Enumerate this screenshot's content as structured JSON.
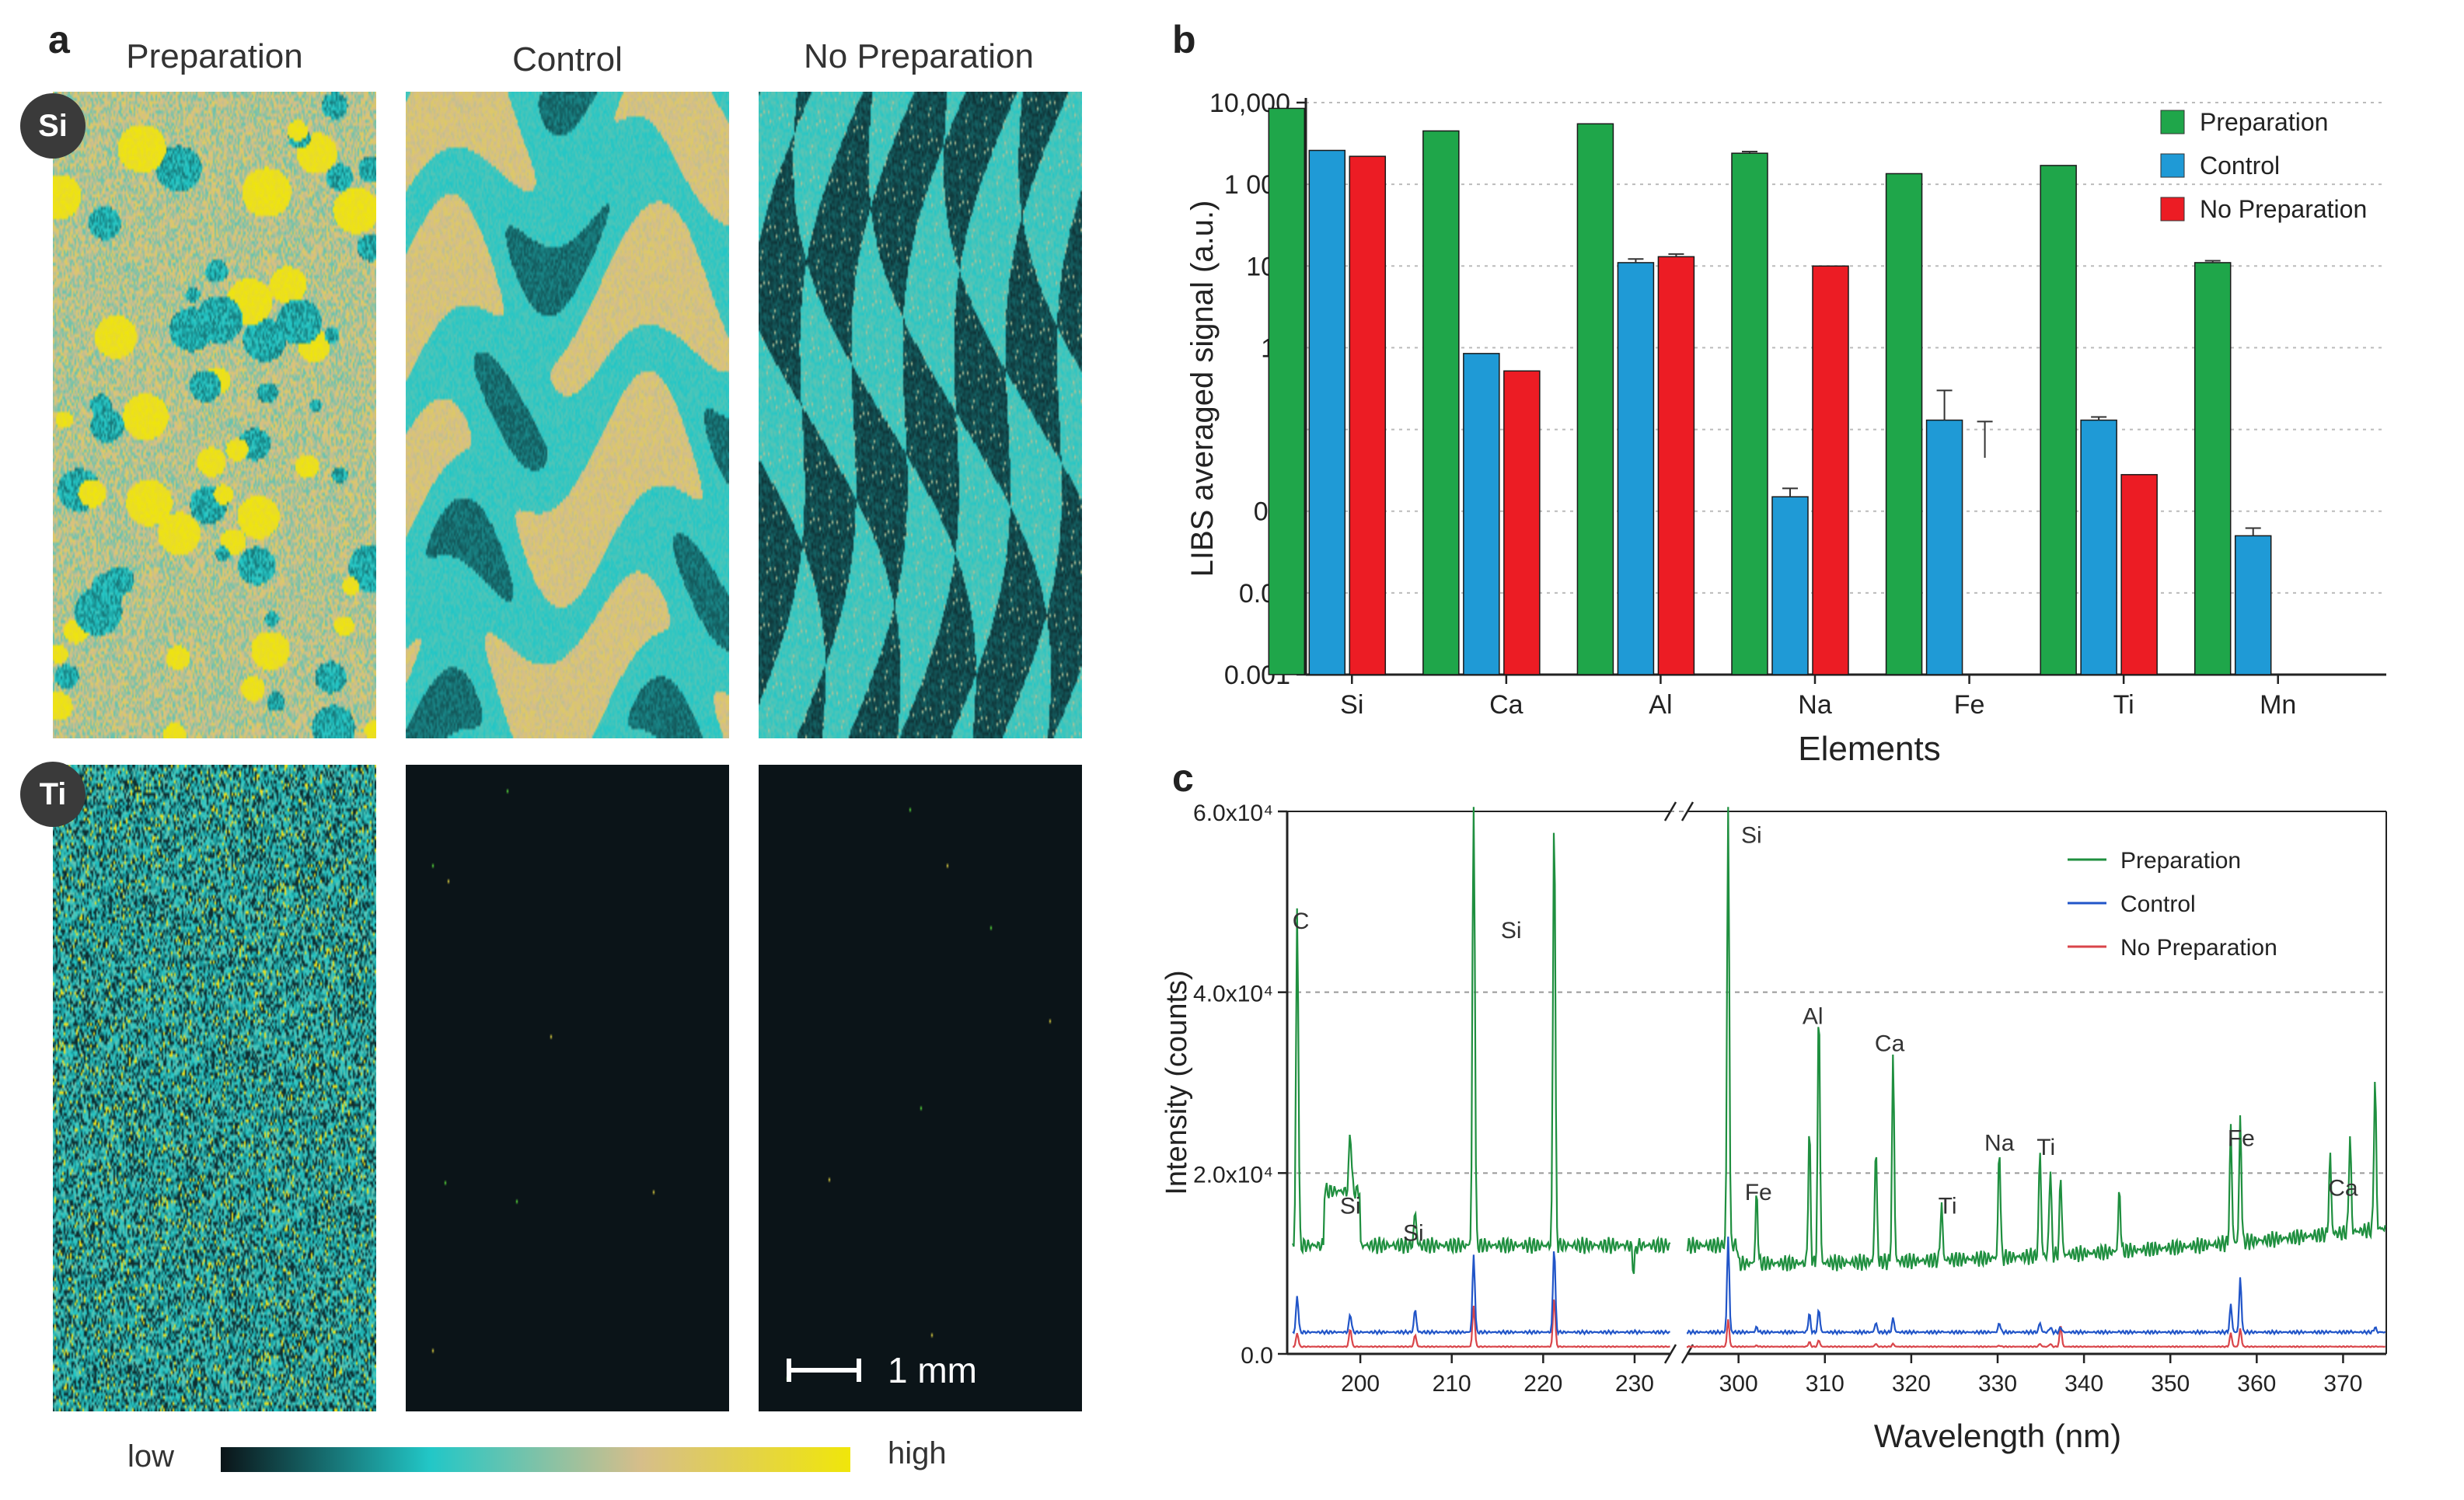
{
  "panel_a": {
    "letter": "a",
    "columns": [
      "Preparation",
      "Control",
      "No Preparation"
    ],
    "rows": [
      "Si",
      "Ti"
    ],
    "scale_bar": "1 mm",
    "colorbar": {
      "low": "low",
      "high": "high",
      "colors": [
        "#0b1418",
        "#22c7c7",
        "#d6be8a",
        "#f0e60a"
      ]
    }
  },
  "chart_data": [
    {
      "id": "b",
      "type": "bar",
      "panel_letter": "b",
      "title": "",
      "xlabel": "Elements",
      "ylabel": "LIBS averaged signal (a.u.)",
      "yscale": "log",
      "ylim": [
        0.001,
        10000
      ],
      "yticks": [
        0.001,
        0.01,
        0.1,
        1,
        10,
        100,
        1000,
        10000
      ],
      "ytick_labels": [
        "0.001",
        "0.01",
        "0.1",
        "1",
        "10",
        "100",
        "1 000",
        "10,000"
      ],
      "grid": "horizontal dotted",
      "legend_position": "top-right",
      "categories": [
        "Si",
        "Ca",
        "Al",
        "Na",
        "Fe",
        "Ti",
        "Mn"
      ],
      "series": [
        {
          "name": "Preparation",
          "color": "#1fa64a",
          "values": [
            8500,
            4500,
            5500,
            2400,
            1350,
            1700,
            110
          ],
          "errors": [
            null,
            null,
            null,
            120,
            null,
            null,
            6
          ]
        },
        {
          "name": "Control",
          "color": "#1f9ad6",
          "values": [
            2600,
            8.5,
            110,
            0.15,
            1.3,
            1.3,
            0.05
          ],
          "errors": [
            null,
            null,
            12,
            0.04,
            1.7,
            0.12,
            0.012
          ]
        },
        {
          "name": "No Preparation",
          "color": "#ec1c24",
          "values": [
            2200,
            5.2,
            130,
            100,
            null,
            0.28,
            null
          ],
          "errors": [
            null,
            null,
            10,
            null,
            0.8,
            null,
            null
          ]
        }
      ]
    },
    {
      "id": "c",
      "type": "line",
      "panel_letter": "c",
      "title": "",
      "xlabel": "Wavelength (nm)",
      "ylabel": "Intensity (counts)",
      "xlim_segments": [
        [
          192,
          234
        ],
        [
          294,
          375
        ]
      ],
      "xticks_left": [
        200,
        210,
        220,
        230
      ],
      "xticks_right": [
        300,
        310,
        320,
        330,
        340,
        350,
        360,
        370
      ],
      "ylim": [
        0,
        60000
      ],
      "ytick_values": [
        0,
        20000,
        40000,
        60000
      ],
      "ytick_labels": [
        "0.0",
        "2.0x10⁴",
        "4.0x10⁴",
        "6.0x10⁴"
      ],
      "grid": "horizontal dashed",
      "legend_position": "top-right",
      "series": [
        {
          "name": "Preparation",
          "color": "#1f8f3f",
          "baseline": 12000
        },
        {
          "name": "Control",
          "color": "#2155c8",
          "baseline": 2400
        },
        {
          "name": "No Preparation",
          "color": "#d9454a",
          "baseline": 800
        }
      ],
      "peaks": [
        {
          "x": 193.1,
          "prep": 45000,
          "ctrl": 5500,
          "nop": 2000
        },
        {
          "x": 198.9,
          "prep": 14000,
          "ctrl": 3500,
          "nop": 2500
        },
        {
          "x": 206.0,
          "prep": 11000,
          "ctrl": 4000,
          "nop": 1800
        },
        {
          "x": 212.4,
          "prep": 59000,
          "ctrl": 10000,
          "nop": 5000
        },
        {
          "x": 221.2,
          "prep": 56000,
          "ctrl": 11000,
          "nop": 6000
        },
        {
          "x": 229.9,
          "prep": 4500,
          "ctrl": 1500,
          "nop": 500
        },
        {
          "x": 298.8,
          "prep": 56000,
          "ctrl": 12000,
          "nop": 3500
        },
        {
          "x": 302.1,
          "prep": 15000,
          "ctrl": 2000,
          "nop": 600
        },
        {
          "x": 308.2,
          "prep": 22000,
          "ctrl": 3500,
          "nop": 1000
        },
        {
          "x": 309.3,
          "prep": 36000,
          "ctrl": 4000,
          "nop": 1200
        },
        {
          "x": 315.9,
          "prep": 20000,
          "ctrl": 2500,
          "nop": 800
        },
        {
          "x": 317.9,
          "prep": 30000,
          "ctrl": 3000,
          "nop": 800
        },
        {
          "x": 323.5,
          "prep": 13500,
          "ctrl": 1500,
          "nop": 500
        },
        {
          "x": 330.2,
          "prep": 19500,
          "ctrl": 2500,
          "nop": 600
        },
        {
          "x": 334.9,
          "prep": 19000,
          "ctrl": 2500,
          "nop": 800
        },
        {
          "x": 336.1,
          "prep": 17000,
          "ctrl": 2000,
          "nop": 800
        },
        {
          "x": 337.3,
          "prep": 16000,
          "ctrl": 2000,
          "nop": 2800
        },
        {
          "x": 344.1,
          "prep": 14000,
          "ctrl": 1500,
          "nop": 500
        },
        {
          "x": 357.0,
          "prep": 20000,
          "ctrl": 4500,
          "nop": 2000
        },
        {
          "x": 358.1,
          "prep": 21000,
          "ctrl": 7500,
          "nop": 2500
        },
        {
          "x": 368.5,
          "prep": 16000,
          "ctrl": 1500,
          "nop": 500
        },
        {
          "x": 370.8,
          "prep": 18000,
          "ctrl": 1500,
          "nop": 500
        },
        {
          "x": 373.7,
          "prep": 24000,
          "ctrl": 2000,
          "nop": 500
        }
      ],
      "annotations": [
        {
          "text": "C",
          "x": 193.5,
          "y": 47000
        },
        {
          "text": "Si",
          "x": 198.9,
          "y": 15500
        },
        {
          "text": "Si",
          "x": 205.8,
          "y": 12500
        },
        {
          "text": "Si",
          "x": 216.5,
          "y": 46000
        },
        {
          "text": "Si",
          "x": 301.5,
          "y": 56500
        },
        {
          "text": "Fe",
          "x": 302.3,
          "y": 17000
        },
        {
          "text": "Al",
          "x": 308.6,
          "y": 36500
        },
        {
          "text": "Ca",
          "x": 317.5,
          "y": 33500
        },
        {
          "text": "Ti",
          "x": 324.2,
          "y": 15500
        },
        {
          "text": "Na",
          "x": 330.2,
          "y": 22500
        },
        {
          "text": "Ti",
          "x": 335.6,
          "y": 22000
        },
        {
          "text": "Fe",
          "x": 358.2,
          "y": 23000
        },
        {
          "text": "Ca",
          "x": 370.0,
          "y": 17500
        }
      ]
    }
  ]
}
